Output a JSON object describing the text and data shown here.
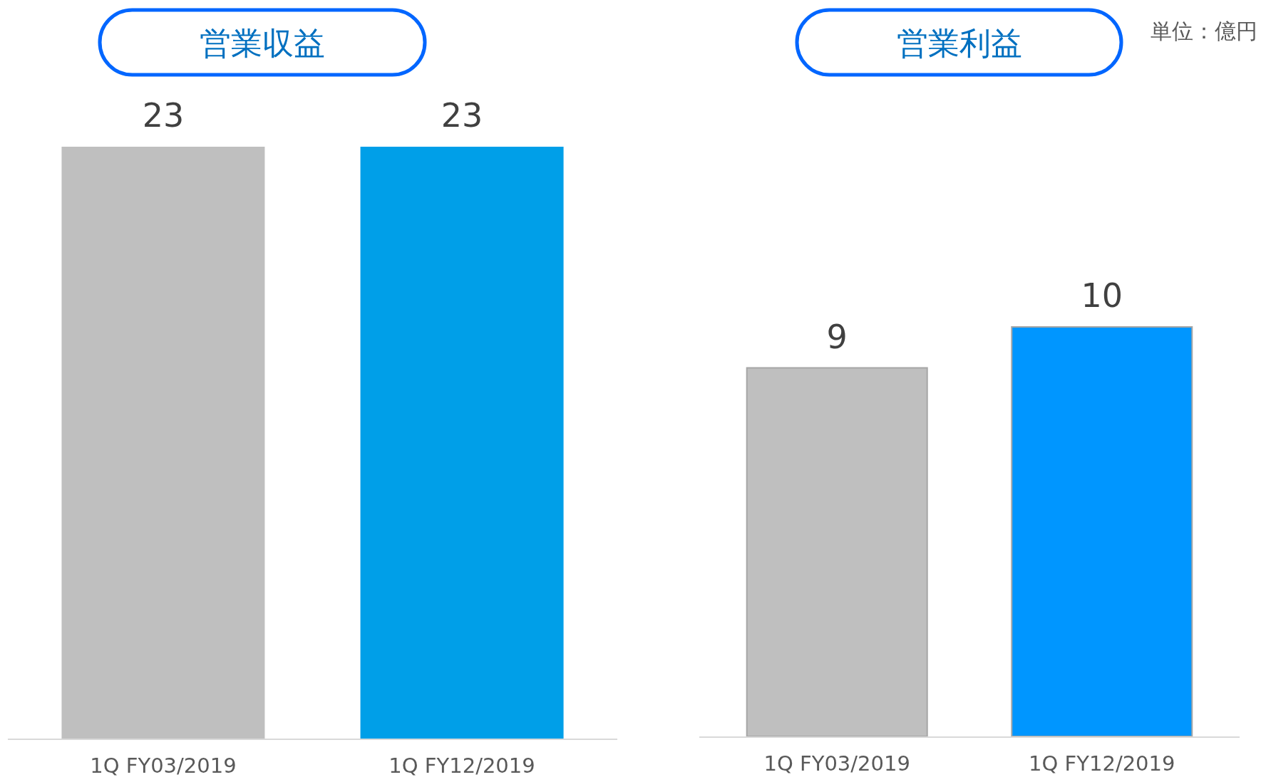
{
  "chart_data": [
    {
      "type": "bar",
      "title": "営業収益",
      "categories": [
        "1Q FY03/2019",
        "1Q FY12/2019"
      ],
      "values": [
        23,
        23
      ],
      "colors": [
        "#bfbfbf",
        "#009fe8"
      ],
      "data_labels": true
    },
    {
      "type": "bar",
      "title": "営業利益",
      "categories": [
        "1Q FY03/2019",
        "1Q FY12/2019"
      ],
      "values": [
        9,
        10
      ],
      "colors": [
        "#bfbfbf",
        "#0096ff"
      ],
      "data_labels": true,
      "annotations": [
        "単位：億円"
      ]
    }
  ]
}
